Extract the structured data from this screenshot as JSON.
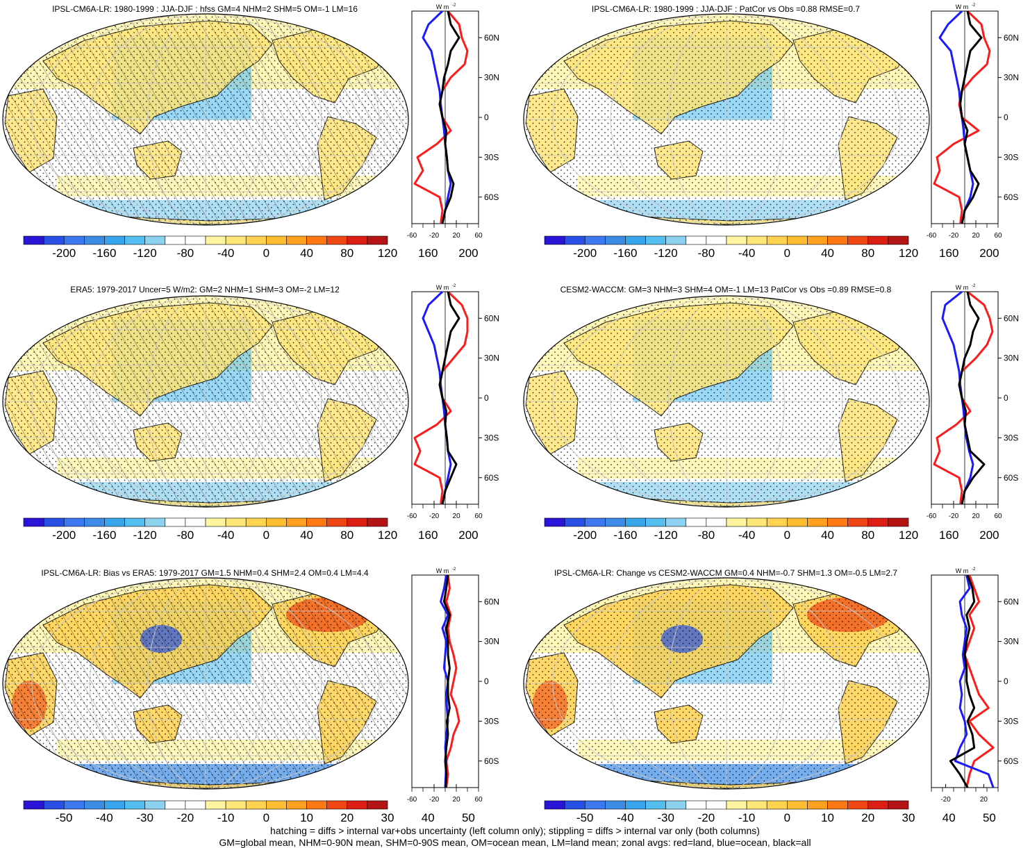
{
  "figure": {
    "footer_line1": "hatching = diffs > internal var+obs uncertainty (left column only); stippling = diffs > internal var only (both columns)",
    "footer_line2": "GM=global mean, NHM=0-90N mean, SHM=0-90S mean, OM=ocean mean, LM=land mean; zonal avgs: red=land, blue=ocean, black=all"
  },
  "colors": {
    "land": "#ff1a1a",
    "ocean": "#1a1aff",
    "all": "#000000",
    "ocean_bg": "#ffffff"
  },
  "chart_data": [
    {
      "type": "heatmap",
      "id": "p1",
      "title": "IPSL-CM6A-LR: 1980-1999 : JJA-DJF : hfss GM=4 NHM=2 SHM=5 OM=-1 LM=16",
      "colorbar_labels": [
        "-200",
        "-160",
        "-120",
        "-80",
        "-40",
        "0",
        "40",
        "80",
        "120",
        "160",
        "200"
      ],
      "colorbar_range": [
        -220,
        220
      ],
      "hatched": true,
      "zonal": {
        "unit": "W m",
        "unit_exp": "-2",
        "xlim": [
          -60,
          60
        ],
        "xticks": [
          "-60",
          "-20",
          "20",
          "60"
        ],
        "ylabels": [
          "60N",
          "30N",
          "0",
          "30S",
          "60S"
        ],
        "lat": [
          80,
          70,
          60,
          50,
          40,
          30,
          20,
          10,
          0,
          -10,
          -20,
          -30,
          -40,
          -50,
          -60,
          -70,
          -80
        ],
        "land": [
          5,
          25,
          30,
          40,
          35,
          10,
          -5,
          -10,
          -5,
          10,
          -15,
          -50,
          -40,
          -55,
          -10,
          -5,
          -8
        ],
        "ocean": [
          -5,
          -30,
          -40,
          -25,
          -20,
          -15,
          -10,
          -8,
          -5,
          -2,
          0,
          3,
          5,
          10,
          5,
          0,
          -5
        ],
        "all": [
          5,
          10,
          25,
          10,
          5,
          -2,
          -5,
          -10,
          -5,
          2,
          0,
          3,
          5,
          15,
          10,
          0,
          -5
        ]
      }
    },
    {
      "type": "heatmap",
      "id": "p2",
      "title": "IPSL-CM6A-LR: 1980-1999 : JJA-DJF : PatCor vs Obs =0.88 RMSE=0.7",
      "colorbar_labels": [
        "-200",
        "-160",
        "-120",
        "-80",
        "-40",
        "0",
        "40",
        "80",
        "120",
        "160",
        "200"
      ],
      "colorbar_range": [
        -220,
        220
      ],
      "hatched": false,
      "zonal": {
        "unit": "W m",
        "unit_exp": "-2",
        "xlim": [
          -60,
          60
        ],
        "xticks": [
          "-60",
          "-20",
          "20",
          "60"
        ],
        "ylabels": [
          "60N",
          "30N",
          "0",
          "30S",
          "60S"
        ],
        "lat": [
          80,
          70,
          60,
          50,
          40,
          30,
          20,
          10,
          0,
          -10,
          -20,
          -30,
          -40,
          -50,
          -60,
          -70,
          -80
        ],
        "land": [
          5,
          30,
          35,
          45,
          40,
          15,
          -5,
          -10,
          -5,
          25,
          -20,
          -50,
          -45,
          -55,
          -10,
          -5,
          -8
        ],
        "ocean": [
          -5,
          -30,
          -45,
          -25,
          -20,
          -15,
          -10,
          -8,
          -5,
          -2,
          0,
          5,
          10,
          15,
          10,
          0,
          -5
        ],
        "all": [
          5,
          10,
          30,
          10,
          5,
          0,
          -5,
          -8,
          -5,
          5,
          0,
          5,
          10,
          25,
          15,
          0,
          -5
        ]
      }
    },
    {
      "type": "heatmap",
      "id": "p3",
      "title": "ERA5: 1979-2017 Uncer=5 W/m2: GM=2 NHM=1 SHM=3 OM=-2 LM=12",
      "colorbar_labels": [
        "-200",
        "-160",
        "-120",
        "-80",
        "-40",
        "0",
        "40",
        "80",
        "120",
        "160",
        "200"
      ],
      "colorbar_range": [
        -220,
        220
      ],
      "hatched": true,
      "zonal": {
        "unit": "W m",
        "unit_exp": "-2",
        "xlim": [
          -60,
          60
        ],
        "xticks": [
          "-60",
          "-20",
          "20",
          "60"
        ],
        "ylabels": [
          "60N",
          "30N",
          "0",
          "30S",
          "60S"
        ],
        "lat": [
          80,
          70,
          60,
          50,
          40,
          30,
          20,
          10,
          0,
          -10,
          -20,
          -30,
          -40,
          -50,
          -60,
          -70,
          -80
        ],
        "land": [
          5,
          30,
          40,
          40,
          35,
          15,
          -5,
          -10,
          -5,
          10,
          -15,
          -55,
          -45,
          -55,
          -10,
          -5,
          -8
        ],
        "ocean": [
          -5,
          -30,
          -40,
          -30,
          -20,
          -15,
          -10,
          -8,
          -5,
          -2,
          0,
          3,
          5,
          10,
          5,
          0,
          -5
        ],
        "all": [
          5,
          10,
          25,
          10,
          5,
          0,
          -5,
          -10,
          -5,
          2,
          0,
          3,
          5,
          20,
          10,
          0,
          -5
        ]
      }
    },
    {
      "type": "heatmap",
      "id": "p4",
      "title": "CESM2-WACCM: GM=3 NHM=3 SHM=4 OM=-1 LM=13 PatCor vs Obs =0.89 RMSE=0.8",
      "colorbar_labels": [
        "-200",
        "-160",
        "-120",
        "-80",
        "-40",
        "0",
        "40",
        "80",
        "120",
        "160",
        "200"
      ],
      "colorbar_range": [
        -220,
        220
      ],
      "hatched": false,
      "zonal": {
        "unit": "W m",
        "unit_exp": "-2",
        "xlim": [
          -60,
          60
        ],
        "xticks": [
          "-60",
          "-20",
          "20",
          "60"
        ],
        "ylabels": [
          "60N",
          "30N",
          "0",
          "30S",
          "60S"
        ],
        "lat": [
          80,
          70,
          60,
          50,
          40,
          30,
          20,
          10,
          0,
          -10,
          -20,
          -30,
          -40,
          -50,
          -60,
          -70,
          -80
        ],
        "land": [
          5,
          35,
          45,
          50,
          40,
          20,
          -5,
          -10,
          -5,
          10,
          -15,
          -50,
          -45,
          -55,
          -10,
          -5,
          -8
        ],
        "ocean": [
          -5,
          -35,
          -40,
          -30,
          -20,
          -15,
          -10,
          -8,
          -5,
          -2,
          0,
          3,
          8,
          15,
          10,
          0,
          -5
        ],
        "all": [
          5,
          10,
          25,
          15,
          10,
          0,
          -5,
          -10,
          -5,
          2,
          0,
          5,
          10,
          35,
          15,
          0,
          -5
        ]
      }
    },
    {
      "type": "heatmap",
      "id": "p5",
      "title": "IPSL-CM6A-LR: Bias vs ERA5: 1979-2017 GM=1.5 NHM=0.4 SHM=2.4 OM=0.4 LM=4.4",
      "colorbar_labels": [
        "-50",
        "-40",
        "-30",
        "-20",
        "-10",
        "0",
        "10",
        "20",
        "30",
        "40",
        "50"
      ],
      "colorbar_range": [
        -55,
        55
      ],
      "hatched": true,
      "zonal": {
        "unit": "W m",
        "unit_exp": "-2",
        "xlim": [
          -60,
          60
        ],
        "xticks": [
          "-60",
          "-20",
          "20",
          "60"
        ],
        "ylabels": [
          "60N",
          "30N",
          "0",
          "30S",
          "60S"
        ],
        "lat": [
          80,
          70,
          60,
          50,
          40,
          30,
          20,
          10,
          0,
          -10,
          -20,
          -30,
          -40,
          -50,
          -60,
          -70,
          -80
        ],
        "land": [
          5,
          8,
          2,
          10,
          5,
          8,
          15,
          20,
          15,
          10,
          20,
          25,
          15,
          10,
          2,
          5,
          2
        ],
        "ocean": [
          2,
          -2,
          -8,
          5,
          -5,
          2,
          0,
          -2,
          5,
          2,
          3,
          5,
          2,
          0,
          2,
          1,
          0
        ],
        "all": [
          5,
          2,
          -2,
          8,
          2,
          5,
          5,
          8,
          5,
          5,
          8,
          3,
          5,
          2,
          0,
          2,
          1
        ]
      }
    },
    {
      "type": "heatmap",
      "id": "p6",
      "title": "IPSL-CM6A-LR: Change vs CESM2-WACCM GM=0.4 NHM=-0.7 SHM=1.3 OM=-0.5 LM=2.7",
      "colorbar_labels": [
        "-50",
        "-40",
        "-30",
        "-20",
        "-10",
        "0",
        "10",
        "20",
        "30",
        "40",
        "50"
      ],
      "colorbar_range": [
        -55,
        55
      ],
      "hatched": false,
      "zonal": {
        "unit": "W m",
        "unit_exp": "-2",
        "xlim": [
          -35,
          35
        ],
        "xticks": [
          "-20",
          "20"
        ],
        "ylabels": [
          "60N",
          "30N",
          "0",
          "30S",
          "60S"
        ],
        "lat": [
          80,
          70,
          60,
          50,
          40,
          30,
          20,
          10,
          0,
          -10,
          -20,
          -30,
          -40,
          -50,
          -60,
          -70,
          -80
        ],
        "land": [
          5,
          10,
          15,
          5,
          10,
          5,
          0,
          5,
          10,
          15,
          25,
          5,
          15,
          30,
          10,
          5,
          2
        ],
        "ocean": [
          2,
          5,
          -5,
          -3,
          2,
          0,
          -2,
          0,
          -5,
          -3,
          -5,
          0,
          2,
          -5,
          -10,
          25,
          30
        ],
        "all": [
          3,
          8,
          10,
          2,
          5,
          2,
          0,
          2,
          2,
          5,
          10,
          3,
          8,
          10,
          -15,
          -5,
          3
        ]
      }
    }
  ]
}
